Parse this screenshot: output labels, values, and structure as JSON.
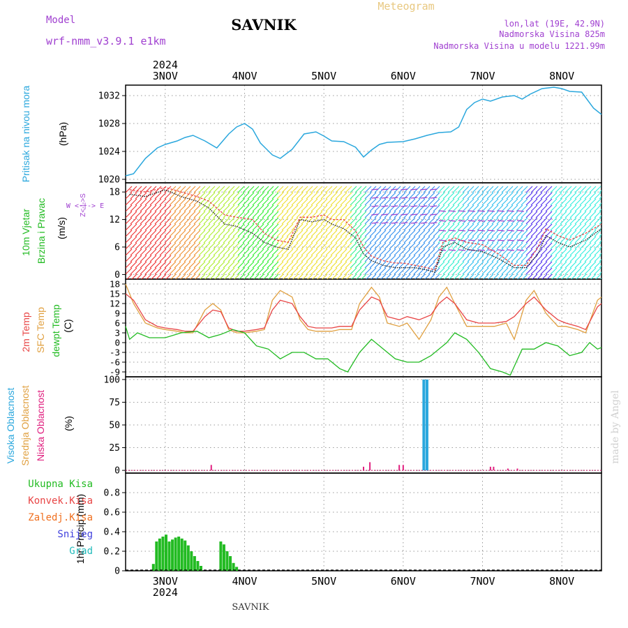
{
  "header": {
    "model_label": "Model",
    "model_name": "wrf-nmm_v3.9.1 e1km",
    "station": "SAVNIK",
    "title": "Meteogram",
    "lonlat": "lon,lat (19E, 42.9N)",
    "elev_real": "Nadmorska Visina 825m",
    "elev_model": "Nadmorska Visina u modelu 1221.99m",
    "watermark": "made by Angel",
    "footer_station": "SAVNIK"
  },
  "time_axis": {
    "days": [
      "3NOV",
      "4NOV",
      "5NOV",
      "6NOV",
      "7NOV",
      "8NOV"
    ],
    "year": "2024",
    "range_days": [
      2.5,
      8.5
    ]
  },
  "colors": {
    "pressure": "#2aa7dd",
    "temp2m": "#e84545",
    "sfc": "#e0a040",
    "dew": "#22bb22",
    "wind_label": "#22bb22",
    "wind_purple": "#a040d0",
    "high_cloud": "#2aa7dd",
    "mid_cloud": "#e0a040",
    "low_cloud": "#e0207f",
    "precip": "#22bb22",
    "header_purple": "#a040d0",
    "meteogram": "#e8c880"
  },
  "panels": {
    "pressure": {
      "label": "Pritisak na nivou mora",
      "unit": "(hPa)",
      "ticks": [
        1020,
        1024,
        1028,
        1032
      ]
    },
    "wind": {
      "label1": "10m Vjetar",
      "label2": "Brzina i Pravac",
      "unit": "(m/s)",
      "ticks": [
        0,
        6,
        12,
        18
      ],
      "compass_ns": "Z<-|->S",
      "compass_we": "W <-|-> E"
    },
    "temp": {
      "label1": "2m Temp",
      "label2": "SFC Temp",
      "label3": "dewpt Temp",
      "unit": "(C)",
      "ticks": [
        -9,
        -6,
        -3,
        0,
        3,
        6,
        9,
        12,
        15,
        18
      ]
    },
    "cloud": {
      "label1": "Visoka Oblacnost",
      "label2": "Srednja Oblacnost",
      "label3": "Niska Oblacnost",
      "unit": "(%)",
      "ticks": [
        0,
        25,
        50,
        75,
        100
      ]
    },
    "precip": {
      "legend": [
        "Ukupna Kisa",
        "Konvek.Kisa",
        "Zaledj.Kisa",
        "Snijeg",
        "Grad"
      ],
      "axis_label": "1hr Precip (mm)",
      "ticks": [
        "0",
        "0.2",
        "0.4",
        "0.6",
        "0.8"
      ]
    }
  },
  "chart_data": [
    {
      "type": "line",
      "title": "Pritisak na nivou mora",
      "ylabel": "(hPa)",
      "ylim": [
        1019.5,
        1033.5
      ],
      "x_unit": "day of November 2024",
      "series": [
        {
          "name": "Pritisak na nivou mora",
          "x": [
            2.5,
            2.6,
            2.75,
            2.9,
            3.0,
            3.15,
            3.25,
            3.35,
            3.5,
            3.65,
            3.8,
            3.9,
            4.0,
            4.1,
            4.2,
            4.35,
            4.45,
            4.6,
            4.75,
            4.9,
            5.0,
            5.1,
            5.25,
            5.4,
            5.5,
            5.6,
            5.7,
            5.8,
            6.0,
            6.15,
            6.3,
            6.45,
            6.6,
            6.7,
            6.8,
            6.9,
            7.0,
            7.1,
            7.25,
            7.4,
            7.5,
            7.6,
            7.75,
            7.9,
            8.0,
            8.1,
            8.25,
            8.4,
            8.5
          ],
          "values": [
            1020.5,
            1020.8,
            1023.0,
            1024.5,
            1025.0,
            1025.5,
            1026.0,
            1026.3,
            1025.5,
            1024.5,
            1026.5,
            1027.5,
            1028.0,
            1027.2,
            1025.2,
            1023.5,
            1023.0,
            1024.3,
            1026.5,
            1026.8,
            1026.2,
            1025.5,
            1025.4,
            1024.6,
            1023.2,
            1024.2,
            1025.0,
            1025.3,
            1025.4,
            1025.8,
            1026.3,
            1026.7,
            1026.8,
            1027.5,
            1030.0,
            1031.0,
            1031.5,
            1031.2,
            1031.8,
            1032.0,
            1031.5,
            1032.2,
            1033.0,
            1033.2,
            1033.0,
            1032.6,
            1032.5,
            1030.2,
            1029.3
          ]
        }
      ]
    },
    {
      "type": "line",
      "title": "10m Vjetar Brzina i Pravac",
      "ylabel": "(m/s)",
      "ylim": [
        -1,
        20
      ],
      "x_unit": "day of November 2024",
      "series": [
        {
          "name": "wind speed",
          "x": [
            2.55,
            2.75,
            3.0,
            3.2,
            3.4,
            3.55,
            3.75,
            3.9,
            4.1,
            4.25,
            4.4,
            4.55,
            4.7,
            4.85,
            5.0,
            5.1,
            5.25,
            5.4,
            5.5,
            5.6,
            5.75,
            5.9,
            6.0,
            6.15,
            6.3,
            6.4,
            6.5,
            6.65,
            6.8,
            7.0,
            7.2,
            7.4,
            7.55,
            7.7,
            7.8,
            7.95,
            8.1,
            8.3,
            8.5
          ],
          "values": [
            17.5,
            17.0,
            18.5,
            17.0,
            16.0,
            14.5,
            11.0,
            10.5,
            9.0,
            7.0,
            6.0,
            5.5,
            12.0,
            11.5,
            12.0,
            11.0,
            10.0,
            8.0,
            4.5,
            3.0,
            2.0,
            1.5,
            1.5,
            1.5,
            1.0,
            0.5,
            6.0,
            7.0,
            5.5,
            5.0,
            3.5,
            1.5,
            1.5,
            4.5,
            8.5,
            7.0,
            6.0,
            7.5,
            10.0
          ]
        },
        {
          "name": "wind gust",
          "x": [
            2.55,
            2.75,
            3.0,
            3.2,
            3.4,
            3.55,
            3.75,
            3.9,
            4.1,
            4.25,
            4.4,
            4.55,
            4.7,
            4.85,
            5.0,
            5.1,
            5.25,
            5.4,
            5.5,
            5.6,
            5.75,
            5.9,
            6.0,
            6.15,
            6.3,
            6.4,
            6.5,
            6.65,
            6.8,
            7.0,
            7.2,
            7.4,
            7.55,
            7.7,
            7.8,
            7.95,
            8.1,
            8.3,
            8.5
          ],
          "values": [
            18.5,
            18.0,
            19.0,
            18.0,
            17.0,
            16.0,
            13.0,
            12.5,
            12.0,
            9.0,
            7.5,
            7.0,
            12.5,
            12.5,
            13.0,
            12.0,
            12.0,
            9.5,
            6.0,
            4.0,
            3.0,
            2.5,
            2.5,
            2.0,
            1.5,
            1.0,
            7.0,
            8.0,
            7.0,
            6.5,
            4.5,
            2.0,
            2.0,
            6.0,
            10.0,
            8.5,
            7.5,
            9.0,
            11.0
          ]
        }
      ]
    },
    {
      "type": "line",
      "title": "2m Temp / SFC Temp / dewpt Temp",
      "ylabel": "(C)",
      "ylim": [
        -10.5,
        19.5
      ],
      "x_unit": "day of November 2024",
      "series": [
        {
          "name": "2m Temp",
          "x": [
            2.5,
            2.6,
            2.75,
            2.9,
            3.0,
            3.15,
            3.25,
            3.35,
            3.5,
            3.6,
            3.7,
            3.8,
            3.9,
            4.0,
            4.15,
            4.25,
            4.35,
            4.45,
            4.6,
            4.7,
            4.8,
            4.9,
            5.0,
            5.1,
            5.2,
            5.35,
            5.45,
            5.6,
            5.7,
            5.8,
            5.95,
            6.05,
            6.2,
            6.35,
            6.45,
            6.55,
            6.65,
            6.8,
            6.95,
            7.05,
            7.15,
            7.3,
            7.4,
            7.55,
            7.65,
            7.8,
            7.95,
            8.05,
            8.2,
            8.3,
            8.45,
            8.5
          ],
          "values": [
            15,
            13,
            7,
            5,
            4.5,
            4,
            3.5,
            3.5,
            8,
            10,
            9.5,
            4.5,
            3.5,
            3.5,
            4,
            4.5,
            10,
            13,
            12,
            8,
            5,
            4.5,
            4.5,
            4.5,
            5,
            5,
            10,
            14,
            13,
            8,
            7,
            8,
            7,
            8.5,
            12,
            14,
            12,
            7,
            6,
            6,
            6,
            6.5,
            8,
            12,
            14,
            10,
            7,
            6,
            5,
            4,
            11,
            12
          ]
        },
        {
          "name": "SFC Temp",
          "x": [
            2.5,
            2.6,
            2.75,
            2.9,
            3.0,
            3.15,
            3.25,
            3.35,
            3.5,
            3.6,
            3.7,
            3.8,
            3.9,
            4.0,
            4.15,
            4.25,
            4.35,
            4.45,
            4.6,
            4.7,
            4.8,
            4.9,
            5.0,
            5.1,
            5.2,
            5.35,
            5.45,
            5.6,
            5.7,
            5.8,
            5.95,
            6.05,
            6.2,
            6.35,
            6.45,
            6.55,
            6.65,
            6.8,
            6.95,
            7.05,
            7.15,
            7.3,
            7.4,
            7.55,
            7.65,
            7.8,
            7.95,
            8.05,
            8.2,
            8.3,
            8.45,
            8.5
          ],
          "values": [
            18,
            12,
            6,
            4.5,
            4,
            3.5,
            3,
            3,
            10,
            12,
            10,
            4,
            3,
            3,
            3.5,
            4,
            13,
            16,
            14,
            7,
            4,
            3.5,
            3.5,
            3.5,
            4,
            4,
            12,
            17,
            14,
            6,
            5,
            6,
            1,
            7,
            14,
            17,
            12,
            5,
            5,
            5,
            5,
            6,
            1,
            13,
            16,
            9,
            5,
            5,
            4,
            3,
            13,
            14
          ]
        },
        {
          "name": "dewpt Temp",
          "x": [
            2.5,
            2.55,
            2.65,
            2.8,
            3.0,
            3.2,
            3.4,
            3.55,
            3.7,
            3.85,
            4.0,
            4.15,
            4.3,
            4.45,
            4.6,
            4.75,
            4.9,
            5.05,
            5.2,
            5.3,
            5.45,
            5.6,
            5.75,
            5.9,
            6.05,
            6.2,
            6.35,
            6.55,
            6.65,
            6.8,
            6.95,
            7.1,
            7.25,
            7.35,
            7.5,
            7.65,
            7.8,
            7.95,
            8.1,
            8.25,
            8.35,
            8.45,
            8.5
          ],
          "values": [
            5,
            1,
            3,
            1.5,
            1.5,
            3,
            3.5,
            1.5,
            2.5,
            4,
            3,
            -1,
            -2,
            -5,
            -3,
            -3,
            -5,
            -5,
            -8,
            -9,
            -3,
            1,
            -2,
            -5,
            -6,
            -6,
            -4,
            0,
            3,
            1,
            -3,
            -8,
            -9,
            -10,
            -2,
            -2,
            0,
            -1,
            -4,
            -3,
            0,
            -2,
            -1.5
          ]
        }
      ]
    },
    {
      "type": "bar",
      "title": "Visoka / Srednja / Niska Oblacnost",
      "ylabel": "(%)",
      "ylim": [
        -3,
        103
      ],
      "x_unit": "day of November 2024",
      "series": [
        {
          "name": "Visoka Oblacnost",
          "x": [
            6.26,
            6.3
          ],
          "values": [
            100,
            100
          ]
        },
        {
          "name": "Niska Oblacnost",
          "x": [
            3.58,
            5.5,
            5.58,
            5.95,
            6.0,
            7.1,
            7.14,
            7.32,
            7.44
          ],
          "values": [
            6,
            4,
            9,
            6,
            6,
            4,
            4,
            2,
            2
          ]
        }
      ]
    },
    {
      "type": "bar",
      "title": "1hr Precip",
      "ylabel": "1hr Precip (mm)",
      "ylim": [
        0,
        1.0
      ],
      "x_unit": "day of November 2024",
      "series": [
        {
          "name": "Ukupna Kisa",
          "x": [
            2.85,
            2.89,
            2.93,
            2.97,
            3.01,
            3.05,
            3.09,
            3.13,
            3.17,
            3.21,
            3.25,
            3.29,
            3.33,
            3.37,
            3.41,
            3.45,
            3.7,
            3.74,
            3.78,
            3.82,
            3.86,
            3.9
          ],
          "values": [
            0.07,
            0.3,
            0.33,
            0.35,
            0.37,
            0.3,
            0.32,
            0.34,
            0.35,
            0.33,
            0.31,
            0.26,
            0.2,
            0.15,
            0.1,
            0.05,
            0.3,
            0.27,
            0.2,
            0.15,
            0.08,
            0.04
          ]
        }
      ]
    }
  ]
}
